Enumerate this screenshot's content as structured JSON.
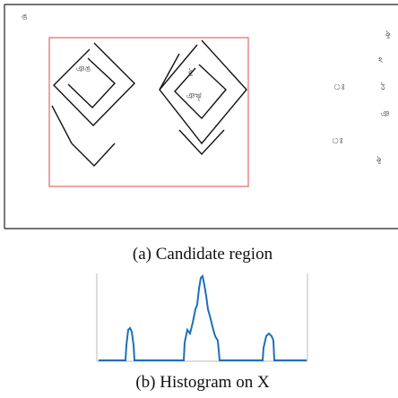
{
  "figure": {
    "panels": [
      {
        "caption": "(a) Candidate region"
      },
      {
        "caption": "(b) Histogram on X"
      }
    ]
  }
}
